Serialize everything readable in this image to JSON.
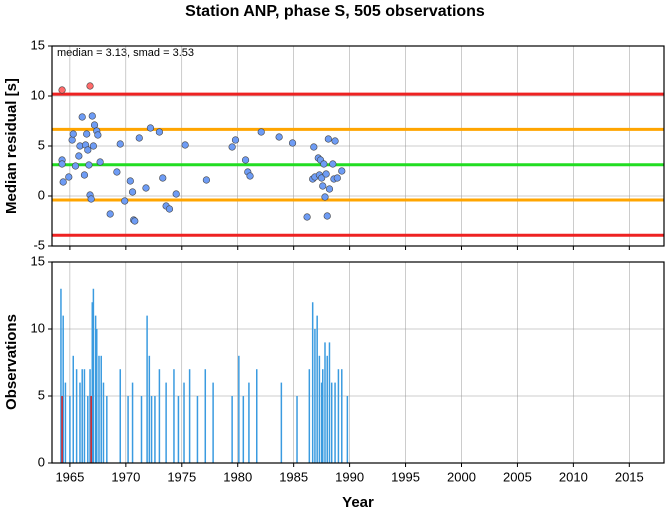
{
  "chart_data": [
    {
      "type": "scatter",
      "title": "Station ANP, phase S, 505 observations",
      "annotation": "median = 3.13, smad = 3.53",
      "ylabel": "Median residual [s]",
      "xlim": [
        1963.4,
        2018.1
      ],
      "xticks": [
        1965,
        1970,
        1975,
        1980,
        1985,
        1990,
        1995,
        2000,
        2005,
        2010,
        2015
      ],
      "ylim": [
        -5,
        15
      ],
      "yticks": [
        -5,
        0,
        5,
        10,
        15
      ],
      "grid": true,
      "reference_lines": [
        {
          "value": 10.19,
          "color": "#ee2222"
        },
        {
          "value": 6.66,
          "color": "#ffa500"
        },
        {
          "value": 3.13,
          "color": "#22dd22"
        },
        {
          "value": -0.4,
          "color": "#ffa500"
        },
        {
          "value": -3.93,
          "color": "#ee2222"
        }
      ],
      "series": [
        {
          "color": "#6e9cf5",
          "x": [
            1964.3,
            1964.3,
            1964.4,
            1964.9,
            1965.2,
            1965.3,
            1965.5,
            1965.8,
            1965.9,
            1966.1,
            1966.3,
            1966.4,
            1966.5,
            1966.6,
            1966.7,
            1966.8,
            1966.9,
            1967.0,
            1967.1,
            1967.2,
            1967.4,
            1967.5,
            1967.7,
            1968.6,
            1969.2,
            1969.5,
            1969.9,
            1970.4,
            1970.6,
            1970.7,
            1970.8,
            1971.2,
            1971.8,
            1972.2,
            1973.0,
            1973.3,
            1973.6,
            1973.9,
            1974.5,
            1975.3,
            1977.2,
            1979.5,
            1979.8,
            1980.7,
            1980.9,
            1981.1,
            1982.1,
            1983.7,
            1984.9,
            1986.2,
            1986.7,
            1986.8,
            1986.9,
            1987.2,
            1987.3,
            1987.4,
            1987.5,
            1987.6,
            1987.7,
            1987.8,
            1987.9,
            1988.0,
            1988.1,
            1988.2,
            1988.5,
            1988.6,
            1988.7,
            1988.9,
            1989.3
          ],
          "values": [
            3.6,
            3.2,
            1.4,
            1.9,
            5.6,
            6.2,
            3.0,
            4.0,
            5.0,
            7.9,
            2.1,
            5.1,
            6.2,
            4.6,
            3.1,
            0.1,
            -0.3,
            8.0,
            5.0,
            7.1,
            6.5,
            6.1,
            3.4,
            -1.8,
            2.4,
            5.2,
            -0.5,
            1.5,
            0.4,
            -2.4,
            -2.5,
            5.8,
            0.8,
            6.8,
            6.4,
            1.8,
            -1.0,
            -1.3,
            0.2,
            5.1,
            1.6,
            4.9,
            5.6,
            3.6,
            2.4,
            2.0,
            6.4,
            5.9,
            5.3,
            -2.1,
            1.7,
            4.9,
            1.9,
            3.8,
            2.1,
            3.6,
            1.8,
            1.0,
            3.2,
            -0.1,
            2.2,
            -2.0,
            5.7,
            0.7,
            3.2,
            1.7,
            5.5,
            1.8,
            2.5
          ]
        },
        {
          "color": "#ff6b6b",
          "x": [
            1964.3,
            1966.8
          ],
          "values": [
            10.6,
            11.0
          ]
        }
      ]
    },
    {
      "type": "bar",
      "ylabel": "Observations",
      "xlabel": "Year",
      "xlim": [
        1963.4,
        2018.1
      ],
      "xticks": [
        1965,
        1970,
        1975,
        1980,
        1985,
        1990,
        1995,
        2000,
        2005,
        2010,
        2015
      ],
      "ylim": [
        0,
        15
      ],
      "yticks": [
        0,
        5,
        10,
        15
      ],
      "grid": true,
      "series": [
        {
          "color": "#3a9be0",
          "x": [
            1964.2,
            1964.4,
            1964.6,
            1965.0,
            1965.3,
            1965.6,
            1965.9,
            1966.1,
            1966.3,
            1966.6,
            1966.8,
            1967.0,
            1967.1,
            1967.3,
            1967.4,
            1967.6,
            1967.8,
            1968.0,
            1968.3,
            1969.5,
            1970.2,
            1970.6,
            1971.4,
            1971.9,
            1972.1,
            1972.3,
            1972.6,
            1973.0,
            1973.6,
            1974.3,
            1974.7,
            1975.2,
            1975.7,
            1976.4,
            1977.1,
            1977.8,
            1979.5,
            1980.1,
            1980.5,
            1981.0,
            1981.7,
            1983.9,
            1985.3,
            1986.4,
            1986.7,
            1986.9,
            1987.1,
            1987.3,
            1987.5,
            1987.6,
            1987.8,
            1988.0,
            1988.2,
            1988.4,
            1988.7,
            1989.0,
            1989.3,
            1989.8
          ],
          "values": [
            13,
            11,
            6,
            5,
            8,
            7,
            6,
            7,
            7,
            5,
            7,
            12,
            13,
            11,
            10,
            8,
            8,
            6,
            5,
            7,
            5,
            6,
            5,
            11,
            8,
            5,
            5,
            7,
            6,
            7,
            5,
            6,
            7,
            5,
            7,
            6,
            5,
            8,
            5,
            6,
            7,
            6,
            5,
            7,
            12,
            10,
            11,
            8,
            6,
            7,
            9,
            8,
            9,
            6,
            6,
            7,
            7,
            5
          ]
        },
        {
          "color": "#dd2222",
          "x": [
            1964.3,
            1966.9
          ],
          "values": [
            5,
            5
          ]
        }
      ]
    }
  ]
}
